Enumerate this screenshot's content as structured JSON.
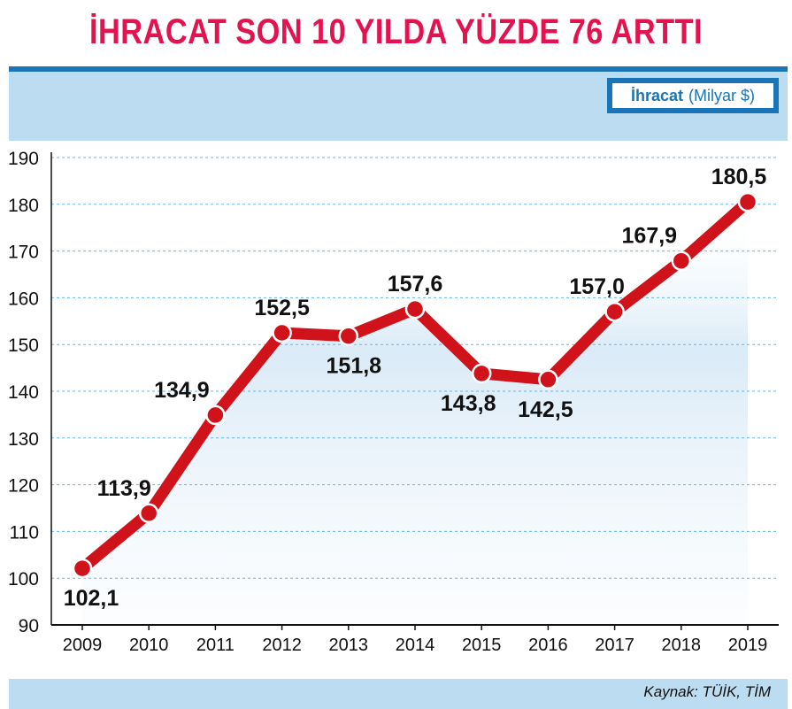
{
  "title": "İHRACAT SON 10 YILDA YÜZDE 76 ARTTI",
  "legend": {
    "label": "İhracat",
    "unit": "(Milyar $)"
  },
  "source": "Kaynak: TÜİK, TİM",
  "colors": {
    "title": "#e3134f",
    "accent_blue": "#1a75b8",
    "band": "#bcdcf1",
    "line": "#d0121a",
    "grid": "#6fb3e0"
  },
  "chart_data": {
    "type": "line",
    "categories": [
      "2009",
      "2010",
      "2011",
      "2012",
      "2013",
      "2014",
      "2015",
      "2016",
      "2017",
      "2018",
      "2019"
    ],
    "values": [
      102.1,
      113.9,
      134.9,
      152.5,
      151.8,
      157.6,
      143.8,
      142.5,
      157.0,
      167.9,
      180.5
    ],
    "value_labels": [
      "102,1",
      "113,9",
      "134,9",
      "152,5",
      "151,8",
      "157,6",
      "143,8",
      "142,5",
      "157,0",
      "167,9",
      "180,5"
    ],
    "ylim": [
      90,
      190
    ],
    "yticks": [
      "90",
      "100",
      "110",
      "120",
      "130",
      "140",
      "150",
      "160",
      "170",
      "180",
      "190"
    ],
    "grid": true
  }
}
